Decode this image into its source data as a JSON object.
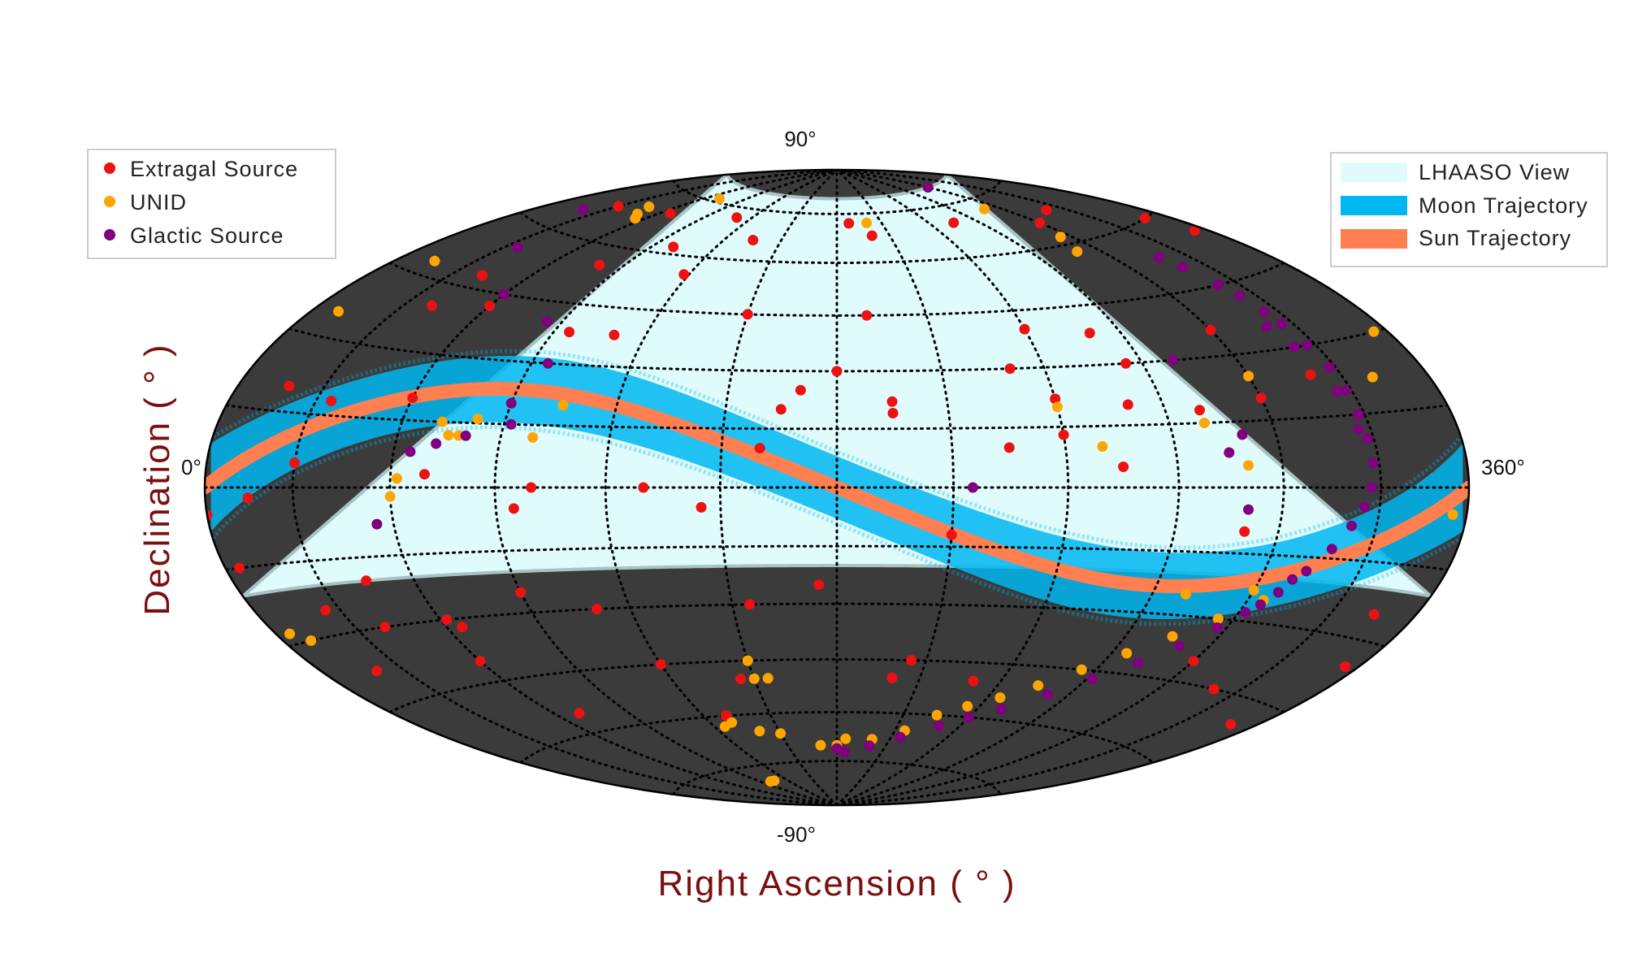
{
  "chart_data": {
    "type": "scatter",
    "projection": "hammer-aitoff",
    "xlabel": "Right Ascension ( ° )",
    "ylabel": "Declination ( ° )",
    "xlim": [
      0,
      360
    ],
    "ylim": [
      -90,
      90
    ],
    "tick_labels": {
      "top": "90°",
      "bottom": "-90°",
      "left": "0°",
      "right": "360°"
    },
    "grid": true,
    "colors": {
      "view": "#dffbfc",
      "outside": "#3b3b3b",
      "moon": "#00b7f1",
      "sun": "#ff7f50",
      "extragal": "#ee1111",
      "unid": "#ffa500",
      "galactic": "#800080"
    },
    "lhaaso_view": {
      "dec_min": -20,
      "dec_max": 80
    },
    "legend_sources": {
      "position": "top-left",
      "entries": [
        {
          "label": "Extragal Source",
          "color": "#ee1111"
        },
        {
          "label": "UNID",
          "color": "#ffa500"
        },
        {
          "label": "Glactic Source",
          "color": "#800080"
        }
      ]
    },
    "legend_regions": {
      "position": "top-right",
      "entries": [
        {
          "label": "LHAASO View",
          "color": "#dffbfc"
        },
        {
          "label": "Moon Trajectory",
          "color": "#00b7f1"
        },
        {
          "label": "Sun Trajectory",
          "color": "#ff7f50"
        }
      ]
    },
    "trajectories": {
      "sun_obliquity_deg": 23.4,
      "moon_half_width_deg": 8
    },
    "series": [
      {
        "name": "Extragal Source",
        "color": "#ee1111",
        "points": [
          [
            30,
            68
          ],
          [
            66,
            70
          ],
          [
            110,
            72
          ],
          [
            135,
            66
          ],
          [
            100,
            62
          ],
          [
            80,
            55
          ],
          [
            118,
            55
          ],
          [
            188,
            72
          ],
          [
            200,
            68
          ],
          [
            255,
            70
          ],
          [
            300,
            66
          ],
          [
            190,
            45
          ],
          [
            240,
            40
          ],
          [
            260,
            38
          ],
          [
            95,
            38
          ],
          [
            150,
            45
          ],
          [
            230,
            30
          ],
          [
            180,
            30
          ],
          [
            170,
            25
          ],
          [
            240,
            22
          ],
          [
            260,
            20
          ],
          [
            165,
            20
          ],
          [
            320,
            24
          ],
          [
            40,
            40
          ],
          [
            60,
            42
          ],
          [
            42,
            48
          ],
          [
            300,
            36
          ],
          [
            355,
            55
          ],
          [
            350,
            60
          ],
          [
            320,
            68
          ],
          [
            18,
            20
          ],
          [
            35,
            18
          ],
          [
            60,
            20
          ],
          [
            160,
            10
          ],
          [
            30,
            5
          ],
          [
            15,
            -2
          ],
          [
            70,
            3
          ],
          [
            95,
            -5
          ],
          [
            100,
            0
          ],
          [
            145,
            -5
          ],
          [
            130,
            0
          ],
          [
            290,
            -10
          ],
          [
            210,
            -12
          ],
          [
            225,
            10
          ],
          [
            240,
            13
          ],
          [
            255,
            5
          ],
          [
            265,
            30
          ],
          [
            280,
            18
          ],
          [
            300,
            20
          ],
          [
            0,
            -5
          ],
          [
            5,
            -15
          ],
          [
            25,
            -25
          ],
          [
            45,
            -20
          ],
          [
            110,
            -30
          ],
          [
            90,
            -25
          ],
          [
            155,
            -30
          ],
          [
            175,
            -25
          ],
          [
            345,
            -25
          ],
          [
            355,
            -35
          ],
          [
            350,
            -50
          ],
          [
            20,
            -38
          ],
          [
            40,
            -30
          ],
          [
            60,
            -40
          ],
          [
            70,
            -55
          ],
          [
            120,
            -45
          ],
          [
            145,
            -50
          ],
          [
            200,
            -50
          ],
          [
            205,
            -45
          ],
          [
            230,
            -50
          ],
          [
            300,
            -40
          ],
          [
            320,
            -45
          ],
          [
            130,
            -60
          ],
          [
            62,
            -30
          ],
          [
            65,
            -32
          ],
          [
            110,
            38
          ],
          [
            195,
            22
          ],
          [
            195,
            19
          ]
        ]
      },
      {
        "name": "UNID",
        "color": "#ffa500",
        "points": [
          [
            70,
            76
          ],
          [
            45,
            70
          ],
          [
            50,
            68
          ],
          [
            55,
            67
          ],
          [
            200,
            72
          ],
          [
            290,
            72
          ],
          [
            295,
            62
          ],
          [
            290,
            58
          ],
          [
            15,
            48
          ],
          [
            10,
            35
          ],
          [
            355,
            30
          ],
          [
            340,
            22
          ],
          [
            300,
            25
          ],
          [
            240,
            20
          ],
          [
            250,
            10
          ],
          [
            280,
            15
          ],
          [
            285,
            8
          ],
          [
            290,
            5
          ],
          [
            78,
            12
          ],
          [
            72,
            15
          ],
          [
            75,
            12
          ],
          [
            82,
            16
          ],
          [
            105,
            20
          ],
          [
            99,
            12
          ],
          [
            60,
            -2
          ],
          [
            62,
            2
          ],
          [
            355,
            -5
          ],
          [
            5,
            -28
          ],
          [
            10,
            -30
          ],
          [
            300,
            -23
          ],
          [
            280,
            -25
          ],
          [
            150,
            -45
          ],
          [
            150,
            -50
          ],
          [
            155,
            -50
          ],
          [
            125,
            -63
          ],
          [
            130,
            -62
          ],
          [
            140,
            -65
          ],
          [
            150,
            -66
          ],
          [
            170,
            -70
          ],
          [
            180,
            -70
          ],
          [
            185,
            -68
          ],
          [
            200,
            -68
          ],
          [
            215,
            -65
          ],
          [
            225,
            -60
          ],
          [
            235,
            -57
          ],
          [
            245,
            -54
          ],
          [
            255,
            -50
          ],
          [
            265,
            -45
          ],
          [
            275,
            -40
          ],
          [
            285,
            -35
          ],
          [
            295,
            -30
          ],
          [
            305,
            -25
          ],
          [
            100,
            -80
          ],
          [
            105,
            -80
          ]
        ]
      },
      {
        "name": "Glactic Source",
        "color": "#800080",
        "points": [
          [
            20,
            65
          ],
          [
            35,
            55
          ],
          [
            60,
            45
          ],
          [
            72,
            10
          ],
          [
            80,
            12
          ],
          [
            92,
            15
          ],
          [
            90,
            20
          ],
          [
            65,
            8
          ],
          [
            55,
            -8
          ],
          [
            85,
            40
          ],
          [
            95,
            30
          ],
          [
            300,
            80
          ],
          [
            290,
            12
          ],
          [
            285,
            8
          ],
          [
            280,
            30
          ],
          [
            318,
            53
          ],
          [
            320,
            50
          ],
          [
            322,
            45
          ],
          [
            324,
            42
          ],
          [
            325,
            38
          ],
          [
            326,
            35
          ],
          [
            327,
            30
          ],
          [
            328,
            25
          ],
          [
            328,
            20
          ],
          [
            328,
            15
          ],
          [
            328,
            10
          ],
          [
            328,
            5
          ],
          [
            327,
            0
          ],
          [
            325,
            -4
          ],
          [
            322,
            -8
          ],
          [
            318,
            -13
          ],
          [
            313,
            -18
          ],
          [
            308,
            -23
          ],
          [
            302,
            -28
          ],
          [
            297,
            -32
          ],
          [
            290,
            -37
          ],
          [
            282,
            -42
          ],
          [
            272,
            -47
          ],
          [
            262,
            -52
          ],
          [
            250,
            -57
          ],
          [
            240,
            -60
          ],
          [
            230,
            -63
          ],
          [
            215,
            -67
          ],
          [
            200,
            -70
          ],
          [
            185,
            -72
          ],
          [
            180,
            -71
          ],
          [
            320,
            35
          ],
          [
            322,
            30
          ],
          [
            325,
            20
          ],
          [
            326,
            12
          ],
          [
            310,
            -20
          ],
          [
            305,
            -26
          ],
          [
            215,
            0
          ],
          [
            290,
            -5
          ]
        ]
      }
    ]
  }
}
